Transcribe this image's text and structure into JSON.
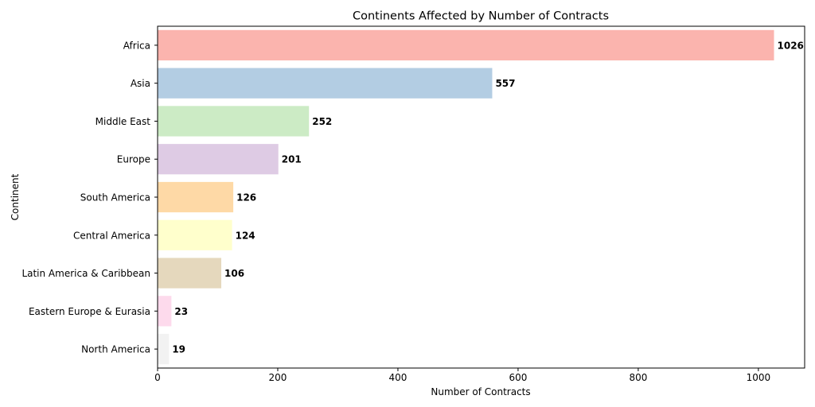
{
  "chart_data": {
    "type": "bar",
    "orientation": "horizontal",
    "title": "Continents Affected by Number of Contracts",
    "xlabel": "Number of Contracts",
    "ylabel": "Continent",
    "xlim": [
      0,
      1077
    ],
    "xticks": [
      0,
      200,
      400,
      600,
      800,
      1000
    ],
    "grid": false,
    "categories": [
      "Africa",
      "Asia",
      "Middle East",
      "Europe",
      "South America",
      "Central America",
      "Latin America & Caribbean",
      "Eastern Europe & Eurasia",
      "North America"
    ],
    "values": [
      1026,
      557,
      252,
      201,
      126,
      124,
      106,
      23,
      19
    ],
    "colors": [
      "#fbb4ae",
      "#b3cde3",
      "#ccebc5",
      "#decbe4",
      "#fed9a6",
      "#ffffcc",
      "#e5d8bd",
      "#fddaec",
      "#f2f2f2"
    ]
  }
}
